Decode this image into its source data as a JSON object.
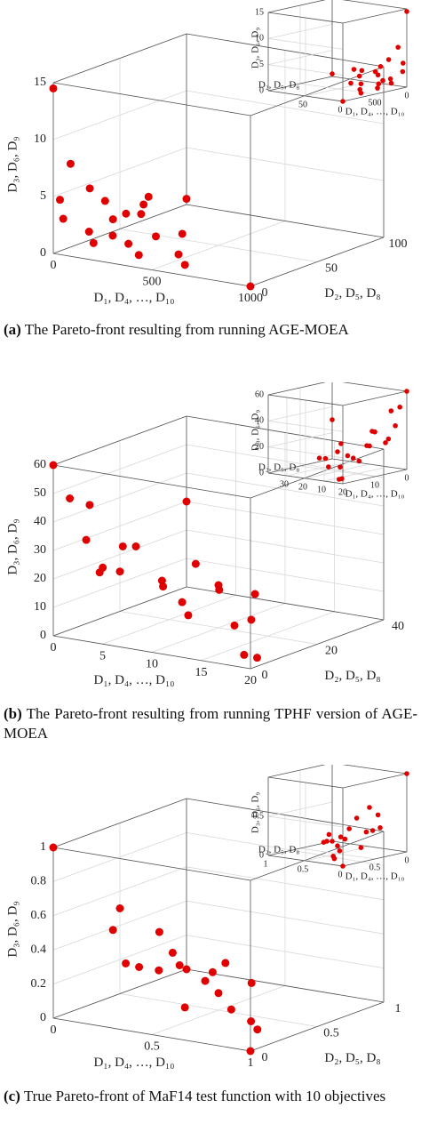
{
  "chart_data": [
    {
      "type": "scatter3d",
      "color": "#e00000",
      "xlabel": "D₁, D₄, …, D₁₀",
      "ylabel": "D₂, D₅, D₈",
      "zlabel": "D₃, D₆, D₉",
      "xlim": [
        0,
        1000
      ],
      "ylim": [
        0,
        100
      ],
      "zlim": [
        0,
        15
      ],
      "xticks": [
        0,
        500,
        1000
      ],
      "yticks": [
        0,
        50,
        100
      ],
      "zticks": [
        0,
        5,
        10,
        15
      ],
      "x": [
        0,
        0,
        20,
        30,
        50,
        80,
        100,
        150,
        200,
        250,
        300,
        400,
        500,
        600,
        1000,
        0,
        40,
        120,
        350,
        10,
        60,
        200
      ],
      "y": [
        0,
        5,
        10,
        3,
        20,
        15,
        30,
        8,
        25,
        40,
        12,
        5,
        20,
        10,
        0,
        100,
        60,
        50,
        45,
        70,
        30,
        15
      ],
      "z": [
        14.5,
        4.5,
        7.5,
        3,
        5,
        1.5,
        2,
        1,
        3,
        0.5,
        1.2,
        0.8,
        0.5,
        0.3,
        0,
        0.5,
        1,
        2.5,
        0.8,
        2,
        3.5,
        1.5
      ],
      "inset": {
        "xlabel": "D₁, D₄, …, D₁₀",
        "ylabel": "D₂, D₅, D₈",
        "zlabel": "D₃, D₆, D₉",
        "xlim": [
          0,
          1000
        ],
        "ylim": [
          0,
          100
        ],
        "zlim": [
          0,
          15
        ],
        "xticks": [
          0,
          500
        ],
        "yticks": [
          0,
          50
        ],
        "zticks": [
          0,
          5,
          10,
          15
        ]
      },
      "caption": {
        "label": "(a)",
        "text": "The Pareto-front resulting from running AGE-MOEA"
      }
    },
    {
      "type": "scatter3d",
      "color": "#e00000",
      "xlabel": "D₁, D₄, …, D₁₀",
      "ylabel": "D₂, D₅, D₈",
      "zlabel": "D₃, D₆, D₉",
      "xlim": [
        0,
        20
      ],
      "ylim": [
        0,
        40
      ],
      "zlim": [
        0,
        60
      ],
      "xticks": [
        0,
        5,
        10,
        15,
        20
      ],
      "yticks": [
        0,
        20,
        40
      ],
      "zticks": [
        0,
        10,
        20,
        30,
        40,
        50,
        60
      ],
      "x": [
        0,
        1,
        2,
        3,
        5,
        0,
        2,
        4,
        8,
        10,
        12,
        15,
        20,
        1,
        3,
        6,
        9,
        14,
        18,
        0,
        5,
        11
      ],
      "y": [
        0,
        2,
        5,
        1,
        10,
        40,
        8,
        3,
        15,
        20,
        5,
        10,
        2,
        30,
        12,
        25,
        6,
        18,
        4,
        20,
        35,
        28
      ],
      "z": [
        60,
        48,
        45,
        35,
        30,
        30,
        20,
        25,
        10,
        15,
        12,
        8,
        3,
        5,
        28,
        18,
        22,
        6,
        2,
        14,
        4,
        9
      ],
      "inset": {
        "xlabel": "D₁, D₄, …, D₁₀",
        "ylabel": "D₂, D₅, D₈",
        "zlabel": "D₃, D₆, D₉",
        "xlim": [
          0,
          20
        ],
        "ylim": [
          0,
          40
        ],
        "zlim": [
          0,
          60
        ],
        "xticks": [
          0,
          10,
          20
        ],
        "yticks": [
          10,
          20,
          30
        ],
        "zticks": [
          0,
          20,
          40,
          60
        ]
      },
      "caption": {
        "label": "(b)",
        "text": "The Pareto-front resulting from running TPHF version of AGE-MOEA"
      }
    },
    {
      "type": "scatter3d",
      "color": "#e00000",
      "xlabel": "D₁, D₄, …, D₁₀",
      "ylabel": "D₂, D₅, D₈",
      "zlabel": "D₃, D₆, D₉",
      "xlim": [
        0,
        1
      ],
      "ylim": [
        0,
        1
      ],
      "zlim": [
        0,
        1
      ],
      "xticks": [
        0,
        0.5,
        1
      ],
      "yticks": [
        0,
        0.5,
        1
      ],
      "zticks": [
        0,
        0.2,
        0.4,
        0.6,
        0.8,
        1
      ],
      "x": [
        0,
        0,
        0.1,
        0.2,
        0.3,
        0.5,
        0.6,
        0.7,
        0.9,
        1,
        0.2,
        0.4,
        0.1,
        0.3,
        0.5,
        0.8,
        0.6,
        0,
        0.2,
        0.4
      ],
      "y": [
        0,
        1,
        0.3,
        0.5,
        0.2,
        0.4,
        0.1,
        0.3,
        0.2,
        0,
        0.6,
        0.7,
        0.8,
        0.1,
        0.5,
        0.3,
        0.6,
        0.5,
        0.9,
        0.2
      ],
      "z": [
        1,
        0,
        0.45,
        0.4,
        0.3,
        0.2,
        0.15,
        0.1,
        0.05,
        0,
        0.25,
        0.2,
        0.1,
        0.35,
        0.1,
        0.05,
        0.15,
        0.5,
        0.05,
        0.3
      ],
      "inset": {
        "xlabel": "D₁, D₄, …, D₁₀",
        "ylabel": "D₂, D₅, D₈",
        "zlabel": "D₃, D₆, D₉",
        "xlim": [
          0,
          1
        ],
        "ylim": [
          0,
          1
        ],
        "zlim": [
          0,
          1
        ],
        "xticks": [
          0,
          0.5
        ],
        "yticks": [
          0,
          0.5,
          1
        ],
        "zticks": [
          0,
          0.5
        ]
      },
      "caption": {
        "label": "(c)",
        "text": "True Pareto-front of MaF14 test function with 10 objectives"
      }
    }
  ]
}
